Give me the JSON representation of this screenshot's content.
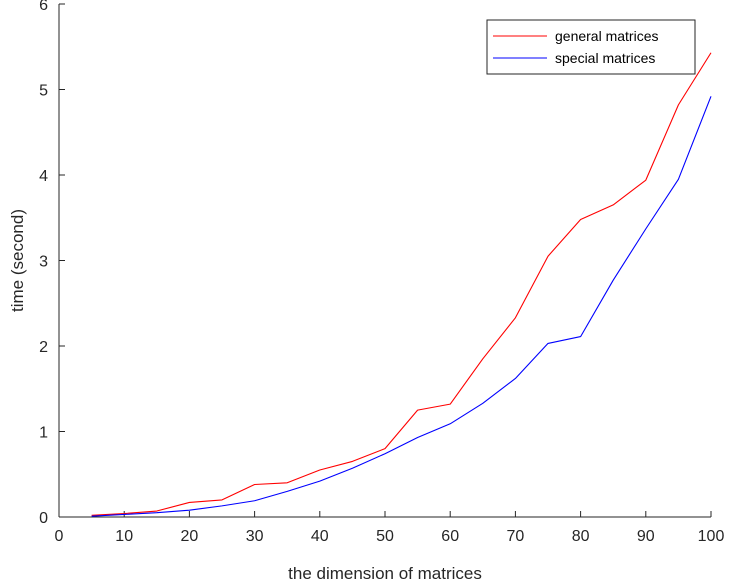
{
  "chart_data": {
    "type": "line",
    "title": "",
    "xlabel": "the dimension of matrices",
    "ylabel": "time (second)",
    "xlim": [
      0,
      100
    ],
    "ylim": [
      0,
      6
    ],
    "xticks": [
      0,
      10,
      20,
      30,
      40,
      50,
      60,
      70,
      80,
      90,
      100
    ],
    "yticks": [
      0,
      1,
      2,
      3,
      4,
      5,
      6
    ],
    "grid": false,
    "legend_position": "top-right",
    "x": [
      5,
      10,
      15,
      20,
      25,
      30,
      35,
      40,
      45,
      50,
      55,
      60,
      65,
      70,
      75,
      80,
      85,
      90,
      95,
      100
    ],
    "series": [
      {
        "name": "general matrices",
        "color": "#ff0000",
        "values": [
          0.02,
          0.04,
          0.07,
          0.17,
          0.2,
          0.38,
          0.4,
          0.55,
          0.65,
          0.8,
          1.25,
          1.32,
          1.85,
          2.33,
          3.05,
          3.48,
          3.65,
          3.94,
          4.82,
          5.43
        ]
      },
      {
        "name": "special matrices",
        "color": "#0000ff",
        "values": [
          0.01,
          0.03,
          0.05,
          0.08,
          0.13,
          0.19,
          0.3,
          0.42,
          0.57,
          0.74,
          0.93,
          1.09,
          1.33,
          1.62,
          2.03,
          2.11,
          2.77,
          3.37,
          3.95,
          4.92
        ]
      }
    ]
  }
}
